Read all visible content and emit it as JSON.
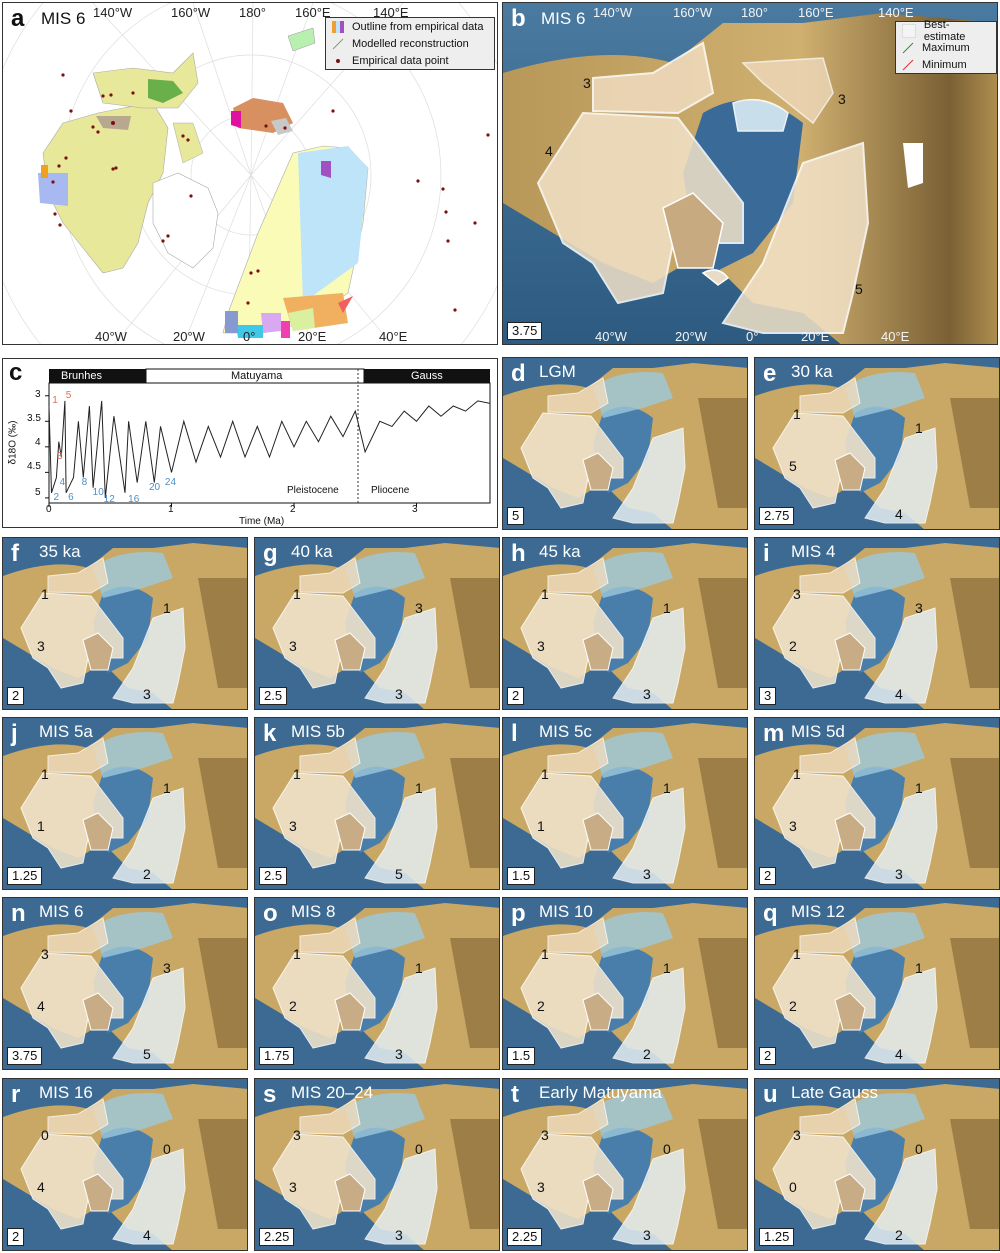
{
  "figure": {
    "panel_a": {
      "letter": "a",
      "title": "MIS 6",
      "top_longitudes": [
        "140°W",
        "160°W",
        "180°",
        "160°E",
        "140°E"
      ],
      "bottom_longitudes": [
        "40°W",
        "20°W",
        "0°",
        "20°E",
        "40°E"
      ],
      "legend": [
        {
          "label": "Outline from empirical data",
          "symbol": "multi-color-swatch"
        },
        {
          "label": "Modelled reconstruction",
          "symbol": "thin-line"
        },
        {
          "label": "Empirical data point",
          "symbol": "dark-red-dot"
        }
      ],
      "colors": {
        "ice_fill": "#e8e89a",
        "data_point": "#7a1010",
        "orange": "#f0a030",
        "blue": "#a8c8f0",
        "purple": "#a060c0",
        "green": "#7cc060",
        "magenta": "#e020a0"
      }
    },
    "panel_b": {
      "letter": "b",
      "title": "MIS 6",
      "top_longitudes": [
        "140°W",
        "160°W",
        "180°",
        "160°E",
        "140°E"
      ],
      "bottom_longitudes": [
        "40°W",
        "20°W",
        "0°",
        "20°E",
        "40°E"
      ],
      "legend": [
        {
          "label": "Best-estimate",
          "color": "#ffffff"
        },
        {
          "label": "Maximum",
          "color": "#3a8a3a"
        },
        {
          "label": "Minimum",
          "color": "#e03030"
        }
      ],
      "confidence_labels": [
        "3",
        "3",
        "4",
        "5"
      ],
      "scale_value": "3.75"
    },
    "panel_c": {
      "letter": "c",
      "polarity_chrons": [
        "Brunhes",
        "Matuyama",
        "Gauss"
      ],
      "epoch_labels": [
        "Pleistocene",
        "Pliocene"
      ],
      "ylabel": "δ18O (‰)",
      "xlabel": "Time (Ma)",
      "xticks": [
        "0",
        "1",
        "2",
        "3"
      ],
      "yticks": [
        "3",
        "3.5",
        "4",
        "4.5",
        "5"
      ],
      "mis_labels_warm": [
        "1",
        "5",
        "3"
      ],
      "mis_labels_cold": [
        "2",
        "4",
        "6",
        "8",
        "10",
        "12",
        "16",
        "20",
        "24"
      ]
    },
    "map_panels": [
      {
        "letter": "d",
        "title": "LGM",
        "scale": "5",
        "labels": []
      },
      {
        "letter": "e",
        "title": "30 ka",
        "scale": "2.75",
        "labels": [
          "1",
          "1",
          "5",
          "4"
        ]
      },
      {
        "letter": "f",
        "title": "35 ka",
        "scale": "2",
        "labels": [
          "1",
          "1",
          "3",
          "3"
        ]
      },
      {
        "letter": "g",
        "title": "40 ka",
        "scale": "2.5",
        "labels": [
          "1",
          "3",
          "3",
          "3"
        ]
      },
      {
        "letter": "h",
        "title": "45 ka",
        "scale": "2",
        "labels": [
          "1",
          "1",
          "3",
          "3"
        ]
      },
      {
        "letter": "i",
        "title": "MIS 4",
        "scale": "3",
        "labels": [
          "3",
          "3",
          "2",
          "4"
        ]
      },
      {
        "letter": "j",
        "title": "MIS 5a",
        "scale": "1.25",
        "labels": [
          "1",
          "1",
          "1",
          "2"
        ]
      },
      {
        "letter": "k",
        "title": "MIS 5b",
        "scale": "2.5",
        "labels": [
          "1",
          "1",
          "3",
          "5"
        ]
      },
      {
        "letter": "l",
        "title": "MIS 5c",
        "scale": "1.5",
        "labels": [
          "1",
          "1",
          "1",
          "3"
        ]
      },
      {
        "letter": "m",
        "title": "MIS 5d",
        "scale": "2",
        "labels": [
          "1",
          "1",
          "3",
          "3"
        ]
      },
      {
        "letter": "n",
        "title": "MIS 6",
        "scale": "3.75",
        "labels": [
          "3",
          "3",
          "4",
          "5"
        ]
      },
      {
        "letter": "o",
        "title": "MIS 8",
        "scale": "1.75",
        "labels": [
          "1",
          "1",
          "2",
          "3"
        ]
      },
      {
        "letter": "p",
        "title": "MIS 10",
        "scale": "1.5",
        "labels": [
          "1",
          "1",
          "2",
          "2"
        ]
      },
      {
        "letter": "q",
        "title": "MIS 12",
        "scale": "2",
        "labels": [
          "1",
          "1",
          "2",
          "4"
        ]
      },
      {
        "letter": "r",
        "title": "MIS 16",
        "scale": "2",
        "labels": [
          "0",
          "0",
          "4",
          "4"
        ]
      },
      {
        "letter": "s",
        "title": "MIS 20–24",
        "scale": "2.25",
        "labels": [
          "3",
          "0",
          "3",
          "3"
        ]
      },
      {
        "letter": "t",
        "title": "Early Matuyama",
        "scale": "2.25",
        "labels": [
          "3",
          "0",
          "3",
          "3"
        ]
      },
      {
        "letter": "u",
        "title": "Late Gauss",
        "scale": "1.25",
        "labels": [
          "3",
          "0",
          "0",
          "2"
        ]
      }
    ]
  },
  "chart_data": {
    "type": "line",
    "title": "",
    "xlabel": "Time (Ma)",
    "ylabel": "δ18O (‰)",
    "xlim": [
      0,
      3.6
    ],
    "ylim": [
      5.1,
      2.75
    ],
    "y_inverted": true,
    "xticks": [
      0,
      1,
      2,
      3
    ],
    "yticks": [
      3,
      3.5,
      4,
      4.5,
      5
    ],
    "grid": false,
    "x": [
      0,
      0.02,
      0.06,
      0.08,
      0.1,
      0.13,
      0.14,
      0.2,
      0.24,
      0.28,
      0.33,
      0.36,
      0.43,
      0.46,
      0.53,
      0.62,
      0.65,
      0.72,
      0.79,
      0.86,
      0.91,
      1.0,
      1.1,
      1.2,
      1.3,
      1.4,
      1.5,
      1.6,
      1.7,
      1.8,
      1.9,
      2.0,
      2.1,
      2.2,
      2.3,
      2.4,
      2.5,
      2.58,
      2.7,
      2.8,
      2.9,
      3.0,
      3.1,
      3.2,
      3.3,
      3.4,
      3.5,
      3.6
    ],
    "y": [
      3.2,
      4.9,
      4.6,
      3.9,
      4.2,
      3.1,
      4.9,
      4.6,
      3.5,
      4.6,
      3.2,
      4.8,
      3.1,
      5.0,
      3.4,
      4.9,
      3.5,
      4.7,
      3.5,
      4.7,
      3.6,
      4.5,
      3.5,
      4.3,
      3.6,
      4.2,
      3.5,
      4.2,
      3.6,
      4.2,
      3.5,
      4.0,
      3.5,
      3.9,
      3.4,
      3.8,
      3.3,
      4.1,
      3.5,
      3.6,
      3.3,
      3.5,
      3.2,
      3.4,
      3.2,
      3.3,
      3.1,
      3.15
    ],
    "annotations": [
      {
        "text": "Brunhes",
        "x_range": [
          0,
          0.78
        ],
        "type": "polarity-normal"
      },
      {
        "text": "Matuyama",
        "x_range": [
          0.78,
          2.58
        ],
        "type": "polarity-reversed"
      },
      {
        "text": "Gauss",
        "x_range": [
          2.58,
          3.6
        ],
        "type": "polarity-normal"
      },
      {
        "text": "Pleistocene",
        "x": 2.3
      },
      {
        "text": "Pliocene",
        "x": 2.8
      },
      {
        "text": "Pleistocene/Pliocene boundary",
        "x": 2.58,
        "style": "dotted-vertical"
      },
      {
        "text": "1",
        "x": 0.01,
        "y": 3.1,
        "color": "#e07050"
      },
      {
        "text": "5",
        "x": 0.12,
        "y": 3.0,
        "color": "#e07050"
      },
      {
        "text": "3",
        "x": 0.05,
        "y": 4.2,
        "color": "#e07050"
      },
      {
        "text": "2",
        "x": 0.02,
        "y": 5.0,
        "color": "#4a8fc8"
      },
      {
        "text": "4",
        "x": 0.07,
        "y": 4.7,
        "color": "#4a8fc8"
      },
      {
        "text": "6",
        "x": 0.14,
        "y": 5.0,
        "color": "#4a8fc8"
      },
      {
        "text": "8",
        "x": 0.25,
        "y": 4.7,
        "color": "#4a8fc8"
      },
      {
        "text": "10",
        "x": 0.34,
        "y": 4.9,
        "color": "#4a8fc8"
      },
      {
        "text": "12",
        "x": 0.43,
        "y": 5.05,
        "color": "#4a8fc8"
      },
      {
        "text": "16",
        "x": 0.63,
        "y": 5.05,
        "color": "#4a8fc8"
      },
      {
        "text": "20",
        "x": 0.8,
        "y": 4.8,
        "color": "#4a8fc8"
      },
      {
        "text": "24",
        "x": 0.93,
        "y": 4.7,
        "color": "#4a8fc8"
      }
    ]
  }
}
